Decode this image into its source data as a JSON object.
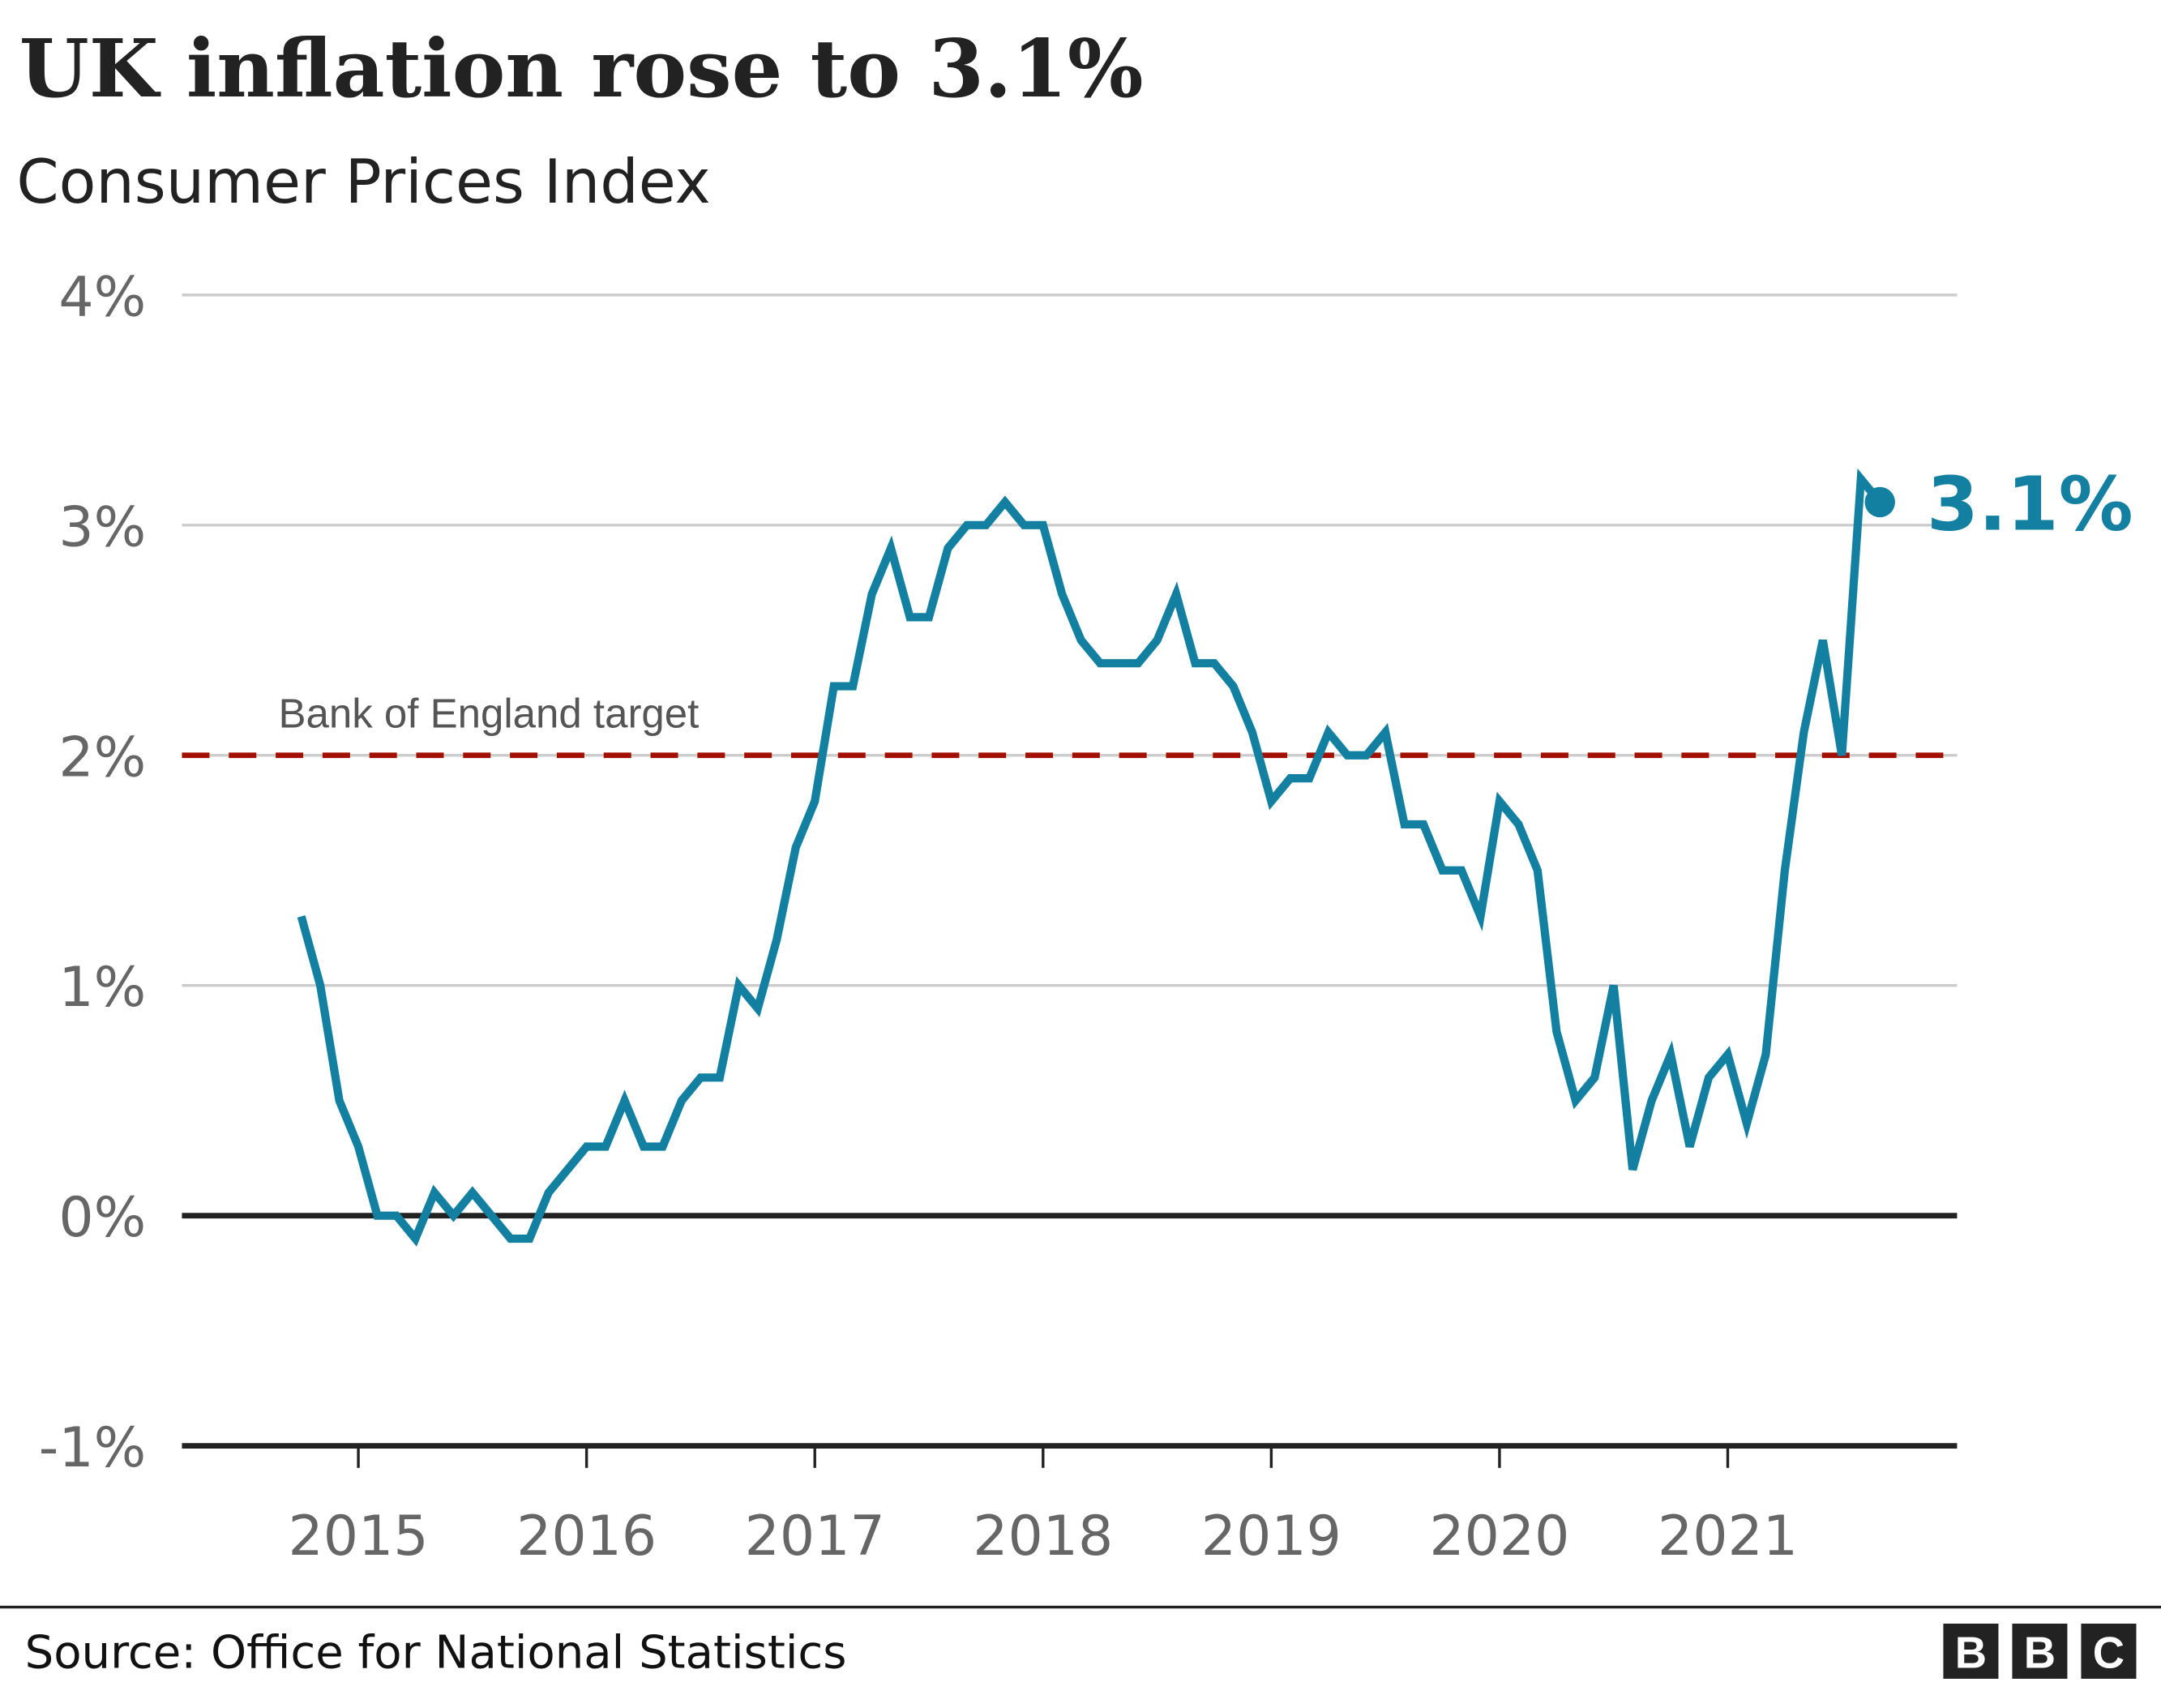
{
  "chart_data": {
    "type": "line",
    "title": "UK inflation rose to 3.1%",
    "subtitle": "Consumer Prices Index",
    "xlabel": "",
    "ylabel": "",
    "ylim": [
      -1,
      4
    ],
    "yticks": [
      -1,
      0,
      1,
      2,
      3,
      4
    ],
    "ytick_labels": [
      "-1%",
      "0%",
      "1%",
      "2%",
      "3%",
      "4%"
    ],
    "xticks": [
      "2015",
      "2016",
      "2017",
      "2018",
      "2019",
      "2020",
      "2021"
    ],
    "x_start": "2014-10",
    "x_end": "2021-09",
    "grid": true,
    "series": [
      {
        "color": "#1380A1",
        "x": [
          "2014-10",
          "2014-11",
          "2014-12",
          "2015-01",
          "2015-02",
          "2015-03",
          "2015-04",
          "2015-05",
          "2015-06",
          "2015-07",
          "2015-08",
          "2015-09",
          "2015-10",
          "2015-11",
          "2015-12",
          "2016-01",
          "2016-02",
          "2016-03",
          "2016-04",
          "2016-05",
          "2016-06",
          "2016-07",
          "2016-08",
          "2016-09",
          "2016-10",
          "2016-11",
          "2016-12",
          "2017-01",
          "2017-02",
          "2017-03",
          "2017-04",
          "2017-05",
          "2017-06",
          "2017-07",
          "2017-08",
          "2017-09",
          "2017-10",
          "2017-11",
          "2017-12",
          "2018-01",
          "2018-02",
          "2018-03",
          "2018-04",
          "2018-05",
          "2018-06",
          "2018-07",
          "2018-08",
          "2018-09",
          "2018-10",
          "2018-11",
          "2018-12",
          "2019-01",
          "2019-02",
          "2019-03",
          "2019-04",
          "2019-05",
          "2019-06",
          "2019-07",
          "2019-08",
          "2019-09",
          "2019-10",
          "2019-11",
          "2019-12",
          "2020-01",
          "2020-02",
          "2020-03",
          "2020-04",
          "2020-05",
          "2020-06",
          "2020-07",
          "2020-08",
          "2020-09",
          "2020-10",
          "2020-11",
          "2020-12",
          "2021-01",
          "2021-02",
          "2021-03",
          "2021-04",
          "2021-05",
          "2021-06",
          "2021-07",
          "2021-08",
          "2021-09"
        ],
        "values": [
          1.3,
          1.0,
          0.5,
          0.3,
          0.0,
          0.0,
          -0.1,
          0.1,
          0.0,
          0.1,
          0.0,
          -0.1,
          -0.1,
          0.1,
          0.2,
          0.3,
          0.3,
          0.5,
          0.3,
          0.3,
          0.5,
          0.6,
          0.6,
          1.0,
          0.9,
          1.2,
          1.6,
          1.8,
          2.3,
          2.3,
          2.7,
          2.9,
          2.6,
          2.6,
          2.9,
          3.0,
          3.0,
          3.1,
          3.0,
          3.0,
          2.7,
          2.5,
          2.4,
          2.4,
          2.4,
          2.5,
          2.7,
          2.4,
          2.4,
          2.3,
          2.1,
          1.8,
          1.9,
          1.9,
          2.1,
          2.0,
          2.0,
          2.1,
          1.7,
          1.7,
          1.5,
          1.5,
          1.3,
          1.8,
          1.7,
          1.5,
          0.8,
          0.5,
          0.6,
          1.0,
          0.2,
          0.5,
          0.7,
          0.3,
          0.6,
          0.7,
          0.4,
          0.7,
          1.5,
          2.1,
          2.5,
          2.0,
          3.2,
          3.1
        ]
      }
    ],
    "reference_line": {
      "value": 2,
      "label": "Bank of England target",
      "color": "#A31000",
      "style": "dashed"
    },
    "end_label": "3.1%",
    "source": "Source: Office for National Statistics"
  },
  "logo": {
    "letters": [
      "B",
      "B",
      "C"
    ]
  }
}
